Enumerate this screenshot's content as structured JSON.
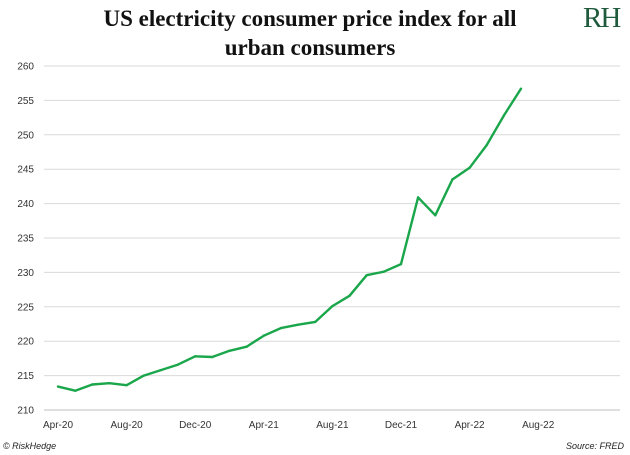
{
  "title_line1": "US electricity consumer price index for all",
  "title_line2": "urban consumers",
  "logo": "RH",
  "footer": {
    "copyright": "© RiskHedge",
    "source": "Source: FRED"
  },
  "colors": {
    "line": "#1aa64a",
    "grid": "#d9d9d9",
    "logo": "#1f5a3c"
  },
  "chart_data": {
    "type": "line",
    "title": "US electricity consumer price index for all urban consumers",
    "xlabel": "",
    "ylabel": "",
    "ylim": [
      210,
      260
    ],
    "yticks": [
      210,
      215,
      220,
      225,
      230,
      235,
      240,
      245,
      250,
      255,
      260
    ],
    "xticks": [
      "Apr-20",
      "Aug-20",
      "Dec-20",
      "Apr-21",
      "Aug-21",
      "Dec-21",
      "Apr-22",
      "Aug-22"
    ],
    "grid": "horizontal",
    "legend": "none",
    "x": [
      "2020-04",
      "2020-05",
      "2020-06",
      "2020-07",
      "2020-08",
      "2020-09",
      "2020-10",
      "2020-11",
      "2020-12",
      "2021-01",
      "2021-02",
      "2021-03",
      "2021-04",
      "2021-05",
      "2021-06",
      "2021-07",
      "2021-08",
      "2021-09",
      "2021-10",
      "2021-11",
      "2021-12",
      "2022-01",
      "2022-02",
      "2022-03",
      "2022-04",
      "2022-05",
      "2022-06",
      "2022-07"
    ],
    "values": [
      213.4,
      212.8,
      213.7,
      213.9,
      213.6,
      215.0,
      215.8,
      216.6,
      217.8,
      217.7,
      218.6,
      219.2,
      220.8,
      221.9,
      222.4,
      222.8,
      225.1,
      226.6,
      229.6,
      230.1,
      231.2,
      240.9,
      238.3,
      243.5,
      245.2,
      248.5,
      252.8,
      256.7
    ]
  }
}
